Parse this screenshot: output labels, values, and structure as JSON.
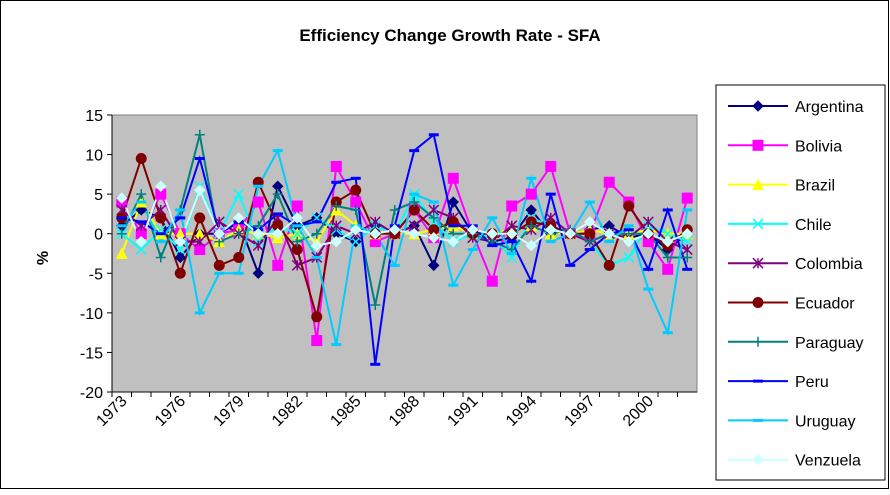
{
  "chart_data": {
    "type": "line",
    "title": "Efficiency Change Growth Rate - SFA",
    "y_label": "%",
    "categories": [
      "1973",
      null,
      null,
      "1976",
      null,
      null,
      "1979",
      null,
      null,
      "1982",
      null,
      null,
      "1985",
      null,
      null,
      "1988",
      null,
      null,
      "1991",
      null,
      null,
      "1994",
      null,
      null,
      "1997",
      null,
      null,
      "2000",
      null,
      null
    ],
    "ylim": [
      -20,
      15
    ],
    "yticks": [
      -20,
      -15,
      -10,
      -5,
      0,
      5,
      10,
      15
    ],
    "grid": false,
    "legend": "right",
    "series": [
      {
        "name": "Argentina",
        "color": "#000080",
        "marker": "diamond",
        "values": [
          1,
          3,
          2,
          -3,
          0,
          0,
          1.5,
          -5,
          6,
          1,
          2,
          0,
          -1,
          1,
          0,
          1,
          -4,
          4,
          0,
          -1,
          -0.5,
          3,
          0,
          0,
          0.5,
          1,
          -0.5,
          0,
          -2,
          0
        ]
      },
      {
        "name": "Bolivia",
        "color": "#FF00FF",
        "marker": "square",
        "values": [
          4,
          0,
          5,
          0,
          -2,
          0,
          0.5,
          4,
          -4,
          3.5,
          -13.5,
          8.5,
          4,
          -1,
          0,
          3,
          -0.5,
          7,
          0,
          -6,
          3.5,
          5,
          8.5,
          0,
          0,
          6.5,
          4,
          -1,
          -4.5,
          4.5
        ]
      },
      {
        "name": "Brazil",
        "color": "#FFFF00",
        "marker": "triangle",
        "values": [
          -2.5,
          4,
          0,
          0,
          0,
          -1,
          0.5,
          0,
          -0.5,
          0,
          -1,
          3,
          1,
          0,
          0,
          0,
          0.5,
          1,
          0,
          0,
          0.5,
          1,
          0,
          0,
          0.5,
          0,
          0,
          0.5,
          0,
          0
        ]
      },
      {
        "name": "Chile",
        "color": "#00FFFF",
        "marker": "x",
        "values": [
          0,
          -2,
          0.5,
          -2,
          6,
          0,
          5,
          -1,
          1,
          0,
          2,
          0.5,
          -1,
          1,
          0,
          5,
          1.5,
          -1,
          0,
          -0.5,
          -3,
          2,
          1,
          0,
          -1,
          -4,
          -3,
          1,
          0,
          -1
        ]
      },
      {
        "name": "Colombia",
        "color": "#800080",
        "marker": "star",
        "values": [
          3,
          1,
          3,
          -1,
          -1,
          1.5,
          0,
          -1.5,
          2,
          -4,
          -3,
          1,
          0,
          1.5,
          0,
          1,
          3,
          2,
          -0.5,
          -1,
          1,
          0.5,
          2,
          0,
          -1,
          0,
          -0.5,
          1.5,
          -1,
          -2
        ]
      },
      {
        "name": "Ecuador",
        "color": "#800000",
        "marker": "circle",
        "values": [
          2,
          9.5,
          2,
          -5,
          2,
          -4,
          -3,
          6.5,
          1,
          -2,
          -10.5,
          4,
          5.5,
          0,
          0,
          3,
          0.5,
          1.5,
          0,
          0,
          0,
          1.5,
          1,
          0,
          0,
          -4,
          3.5,
          0,
          -1.5,
          0.5
        ]
      },
      {
        "name": "Paraguay",
        "color": "#008080",
        "marker": "plus",
        "values": [
          0,
          5,
          -3,
          3,
          12.5,
          -1,
          0,
          1,
          5,
          -1,
          0,
          3.5,
          3,
          -9,
          3,
          4,
          2,
          0,
          0,
          -1,
          -2,
          1,
          0,
          0.5,
          -1,
          0,
          0,
          0,
          -3,
          -3
        ]
      },
      {
        "name": "Peru",
        "color": "#0000FF",
        "marker": "dash",
        "values": [
          2,
          1.5,
          0,
          2,
          9.5,
          0,
          1.5,
          0.5,
          2.5,
          1,
          1.5,
          6.5,
          7,
          -16.5,
          1,
          10.5,
          12.5,
          1,
          1,
          -1.5,
          -1,
          -6,
          5,
          -4,
          -2,
          0,
          0.5,
          -4.5,
          3,
          -4.5
        ]
      },
      {
        "name": "Uruguay",
        "color": "#00CCFF",
        "marker": "dash",
        "values": [
          1,
          4,
          -1,
          3,
          -10,
          -5,
          -5,
          6,
          10.5,
          1,
          -3,
          -14,
          1,
          0,
          -4,
          5,
          4,
          -6.5,
          -2,
          2,
          -2.5,
          7,
          -1,
          0,
          4,
          -1,
          1,
          -7,
          -12.5,
          3
        ]
      },
      {
        "name": "Venzuela",
        "color": "#CCFFFF",
        "marker": "diamond",
        "values": [
          4.5,
          -1,
          6,
          -1,
          5.5,
          0,
          2,
          0,
          0,
          2,
          -1.5,
          -1,
          0.5,
          0,
          0.5,
          0,
          -0.5,
          -1,
          0.5,
          0,
          0,
          -1.5,
          0.5,
          0,
          1.5,
          0,
          -1,
          0,
          -1,
          0
        ]
      }
    ]
  }
}
